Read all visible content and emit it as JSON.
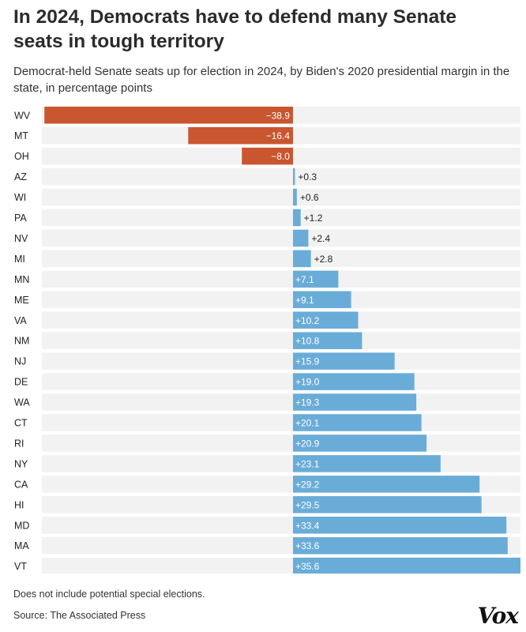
{
  "header": {
    "title": "In 2024, Democrats have to defend many Senate seats in tough territory",
    "subtitle": "Democrat-held Senate seats up for election in 2024, by Biden's 2020 presidential margin in the state, in percentage points"
  },
  "footer": {
    "note": "Does not include potential special elections.",
    "source": "Source: The Associated Press",
    "logo": "Vox"
  },
  "colors": {
    "negative": "#c9562f",
    "positive": "#6aacd8",
    "row_background": "#f2f2f2"
  },
  "chart_data": {
    "type": "bar",
    "orientation": "horizontal",
    "title": "In 2024, Democrats have to defend many Senate seats in tough territory",
    "subtitle": "Democrat-held Senate seats up for election in 2024, by Biden's 2020 presidential margin in the state, in percentage points",
    "categories": [
      "WV",
      "MT",
      "OH",
      "AZ",
      "WI",
      "PA",
      "NV",
      "MI",
      "MN",
      "ME",
      "VA",
      "NM",
      "NJ",
      "DE",
      "WA",
      "CT",
      "RI",
      "NY",
      "CA",
      "HI",
      "MD",
      "MA",
      "VT"
    ],
    "values": [
      -38.9,
      -16.4,
      -8.0,
      0.3,
      0.6,
      1.2,
      2.4,
      2.8,
      7.1,
      9.1,
      10.2,
      10.8,
      15.9,
      19.0,
      19.3,
      20.1,
      20.9,
      23.1,
      29.2,
      29.5,
      33.4,
      33.6,
      35.6
    ],
    "labels": [
      "−38.9",
      "−16.4",
      "−8.0",
      "+0.3",
      "+0.6",
      "+1.2",
      "+2.4",
      "+2.8",
      "+7.1",
      "+9.1",
      "+10.2",
      "+10.8",
      "+15.9",
      "+19.0",
      "+19.3",
      "+20.1",
      "+20.9",
      "+23.1",
      "+29.2",
      "+29.5",
      "+33.4",
      "+33.6",
      "+35.6"
    ],
    "xlim": [
      -39.3,
      35.6
    ],
    "grid": false,
    "legend": "none"
  }
}
